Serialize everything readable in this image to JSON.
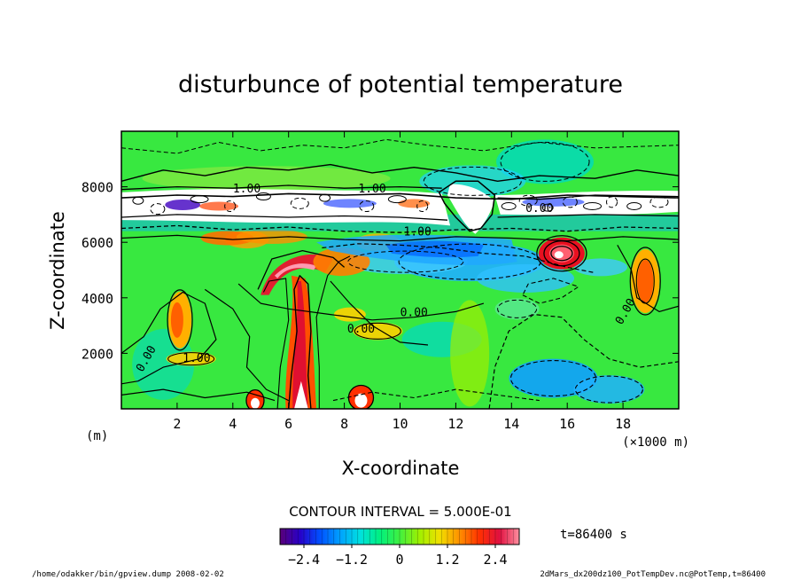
{
  "chart_data": {
    "type": "heatmap",
    "title": "disturbunce of potential temperature",
    "xlabel": "X-coordinate",
    "ylabel": "Z-coordinate",
    "x_unit": "(m)",
    "x_scale_note": "(×1000 m)",
    "xlim": [
      0,
      20
    ],
    "ylim": [
      0,
      10000
    ],
    "x_ticks": [
      2,
      4,
      6,
      8,
      10,
      12,
      14,
      16,
      18
    ],
    "y_ticks": [
      2000,
      4000,
      6000,
      8000
    ],
    "x_tick_labels": [
      "2",
      "4",
      "6",
      "8",
      "10",
      "12",
      "14",
      "16",
      "18"
    ],
    "y_tick_labels": [
      "2000",
      "4000",
      "6000",
      "8000"
    ],
    "contour_interval_label": "CONTOUR INTERVAL = 5.000E-01",
    "time_label": "t=86400 s",
    "colorbar": {
      "range": [
        -3,
        3
      ],
      "tick_values": [
        -2.4,
        -1.2,
        0,
        1.2,
        2.4
      ],
      "tick_labels": [
        "−2.4",
        "−1.2",
        "0",
        "1.2",
        "2.4"
      ],
      "palette": [
        "#5a0078",
        "#2800c8",
        "#0050ff",
        "#00a0ff",
        "#00e0e0",
        "#00f080",
        "#40f040",
        "#a0f000",
        "#f0e000",
        "#ff9000",
        "#ff3000",
        "#e01040",
        "#ff90a0"
      ]
    },
    "contour_labels": [
      "1.00",
      "1.00",
      "0.00",
      "0.00",
      "0.00",
      "1.00",
      "-1.00",
      "0.00",
      "0.00"
    ],
    "footer_left": "/home/odakker/bin/gpview.dump  2008-02-02",
    "footer_right": "2dMars_dx200dz100_PotTempDev.nc@PotTemp,t=86400"
  }
}
